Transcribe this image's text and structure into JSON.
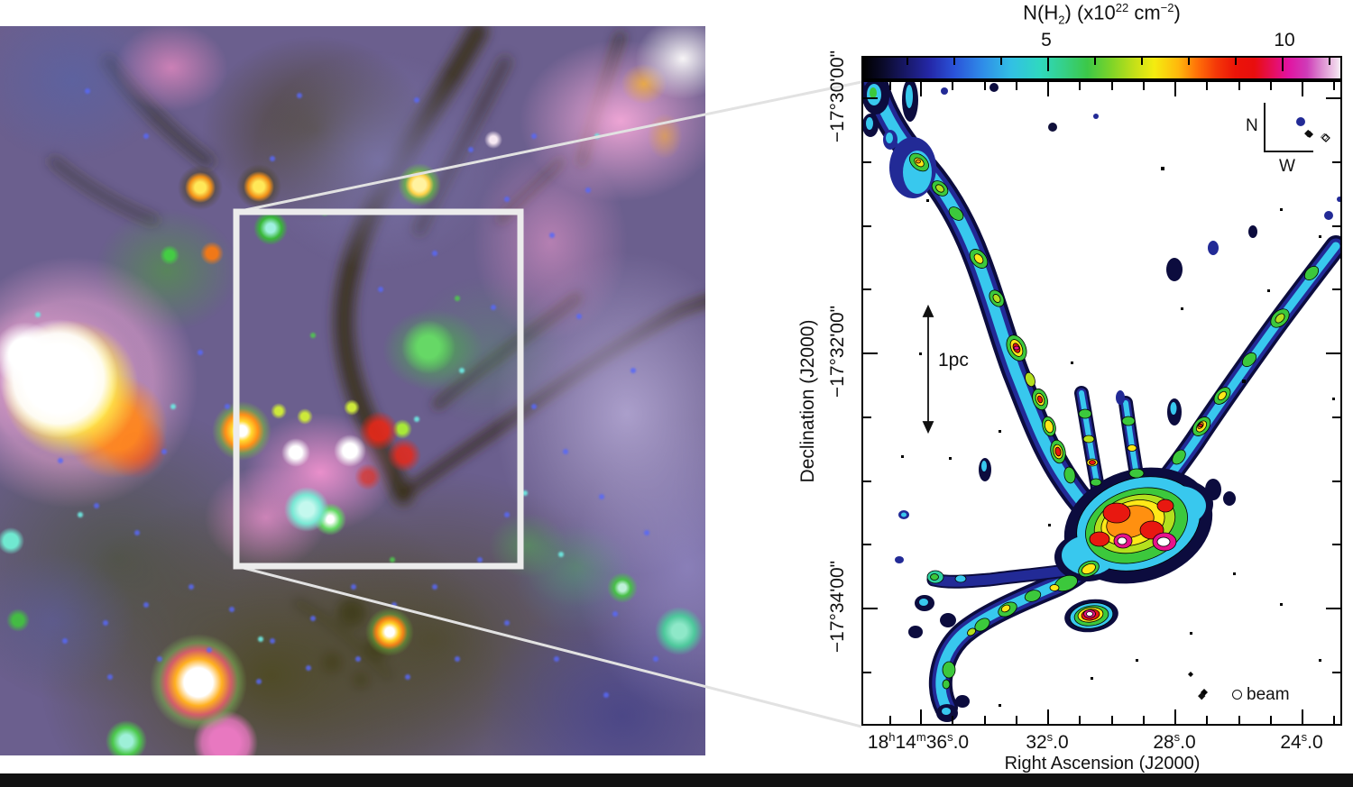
{
  "colorbar": {
    "title": {
      "p0": "N(H",
      "sub0": "2",
      "p1": ") (x10",
      "sup0": "22",
      "p2": " cm",
      "sup1": "−2",
      "p3": ")"
    },
    "tick_labels": {
      "t5": "5",
      "t10": "10"
    },
    "value_range": [
      1,
      11.3
    ],
    "major_tick_values": [
      5,
      10
    ]
  },
  "map": {
    "x_axis": {
      "label": "Right Ascension (J2000)",
      "ticks": [
        {
          "p0": "18",
          "s0": "h",
          "p1": "14",
          "s1": "m",
          "p2": "36",
          "s2": "s",
          "p3": ".0"
        },
        {
          "p0": "",
          "s0": "",
          "p1": "",
          "s1": "",
          "p2": "32",
          "s2": "s",
          "p3": ".0"
        },
        {
          "p0": "",
          "s0": "",
          "p1": "",
          "s1": "",
          "p2": "28",
          "s2": "s",
          "p3": ".0"
        },
        {
          "p0": "",
          "s0": "",
          "p1": "",
          "s1": "",
          "p2": "24",
          "s2": "s",
          "p3": ".0"
        }
      ]
    },
    "y_axis": {
      "label": "Declination (J2000)",
      "ticks": [
        "−17°30'00\"",
        "−17°32'00\"",
        "−17°34'00\""
      ]
    },
    "compass": {
      "north": "N",
      "west": "W"
    },
    "scale_bar_label": "1pc",
    "beam_label": "beam"
  },
  "contour_palette": {
    "lowest": "#0c0c3e",
    "blue": "#222a96",
    "cyan": "#38c8ee",
    "green": "#3cc83c",
    "yellow_green": "#b4e01e",
    "yellow": "#ffe818",
    "orange": "#ff9010",
    "red": "#e81810",
    "magenta": "#e8128c",
    "peak": "#ffffff"
  }
}
